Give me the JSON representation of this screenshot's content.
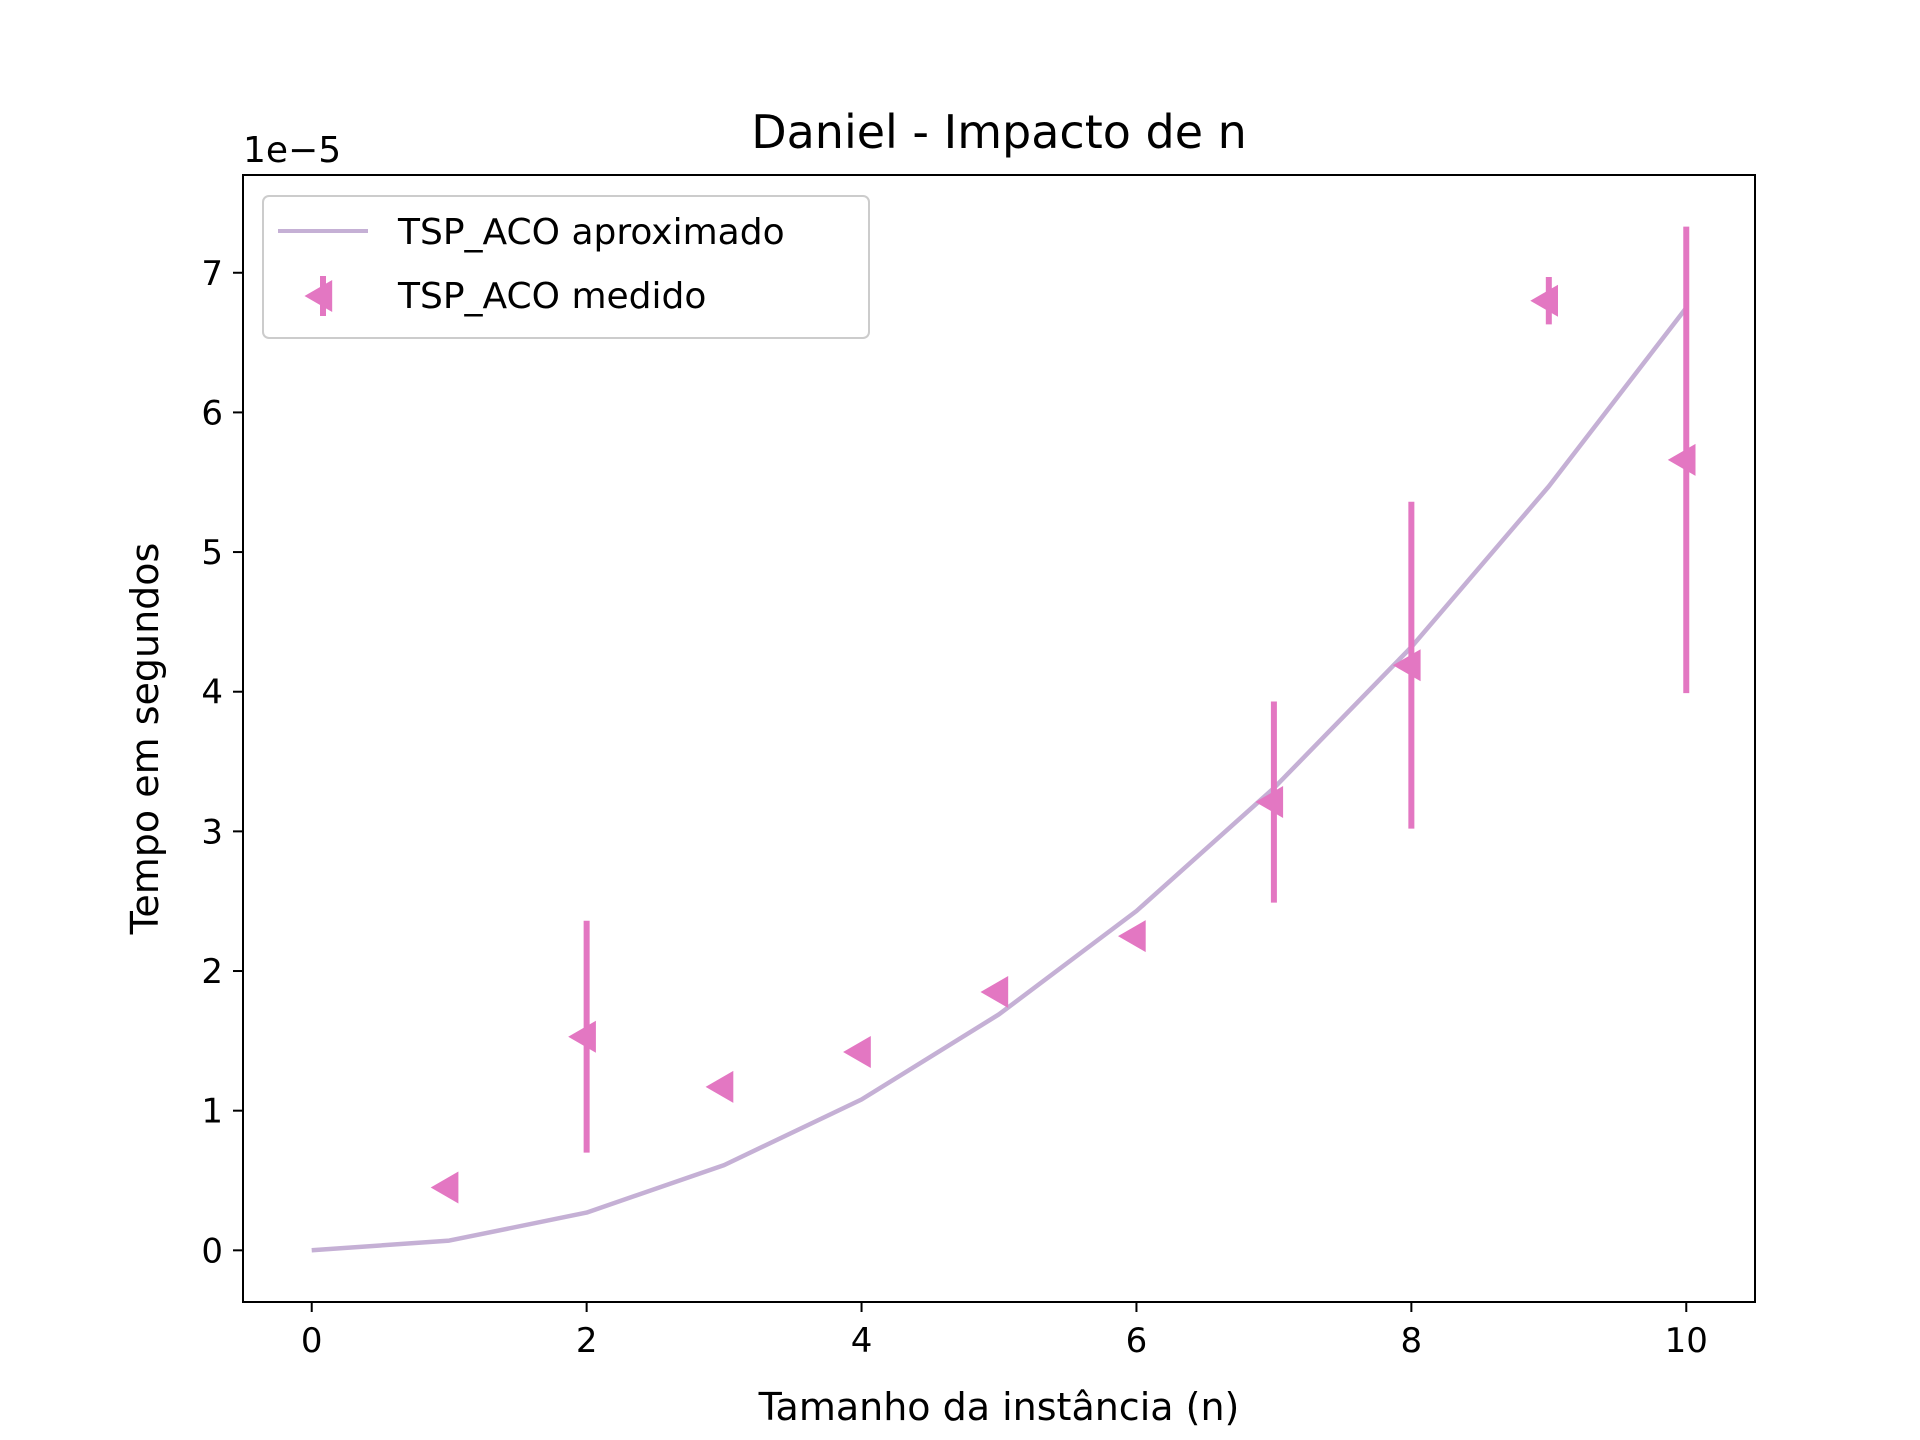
{
  "chart_data": {
    "type": "line",
    "title": "Daniel - Impacto de n",
    "xlabel": "Tamanho da instância (n)",
    "ylabel": "Tempo em segundos",
    "y_offset_label": "1e−5",
    "xlim": [
      -0.5,
      10.5
    ],
    "ylim": [
      -0.37,
      7.7
    ],
    "x_ticks": [
      0,
      2,
      4,
      6,
      8,
      10
    ],
    "y_ticks": [
      0,
      1,
      2,
      3,
      4,
      5,
      6,
      7
    ],
    "grid": false,
    "legend_position": "top-left",
    "series": [
      {
        "name": "TSP_ACO aproximado",
        "kind": "line",
        "color": "#c5b0d5",
        "x": [
          0,
          1,
          2,
          3,
          4,
          5,
          6,
          7,
          8,
          9,
          10
        ],
        "y": [
          0.0,
          0.07,
          0.27,
          0.61,
          1.08,
          1.69,
          2.43,
          3.31,
          4.32,
          5.47,
          6.75
        ]
      },
      {
        "name": "TSP_ACO medido",
        "kind": "errorbar",
        "marker": "triangle-left",
        "color": "#e377c2",
        "x": [
          1,
          2,
          3,
          4,
          5,
          6,
          7,
          8,
          9,
          10
        ],
        "y": [
          0.45,
          1.53,
          1.17,
          1.42,
          1.85,
          2.25,
          3.21,
          4.19,
          6.8,
          5.66
        ],
        "yerr": [
          0.0,
          0.83,
          0.0,
          0.0,
          0.0,
          0.0,
          0.72,
          1.17,
          0.17,
          1.67
        ]
      }
    ]
  }
}
